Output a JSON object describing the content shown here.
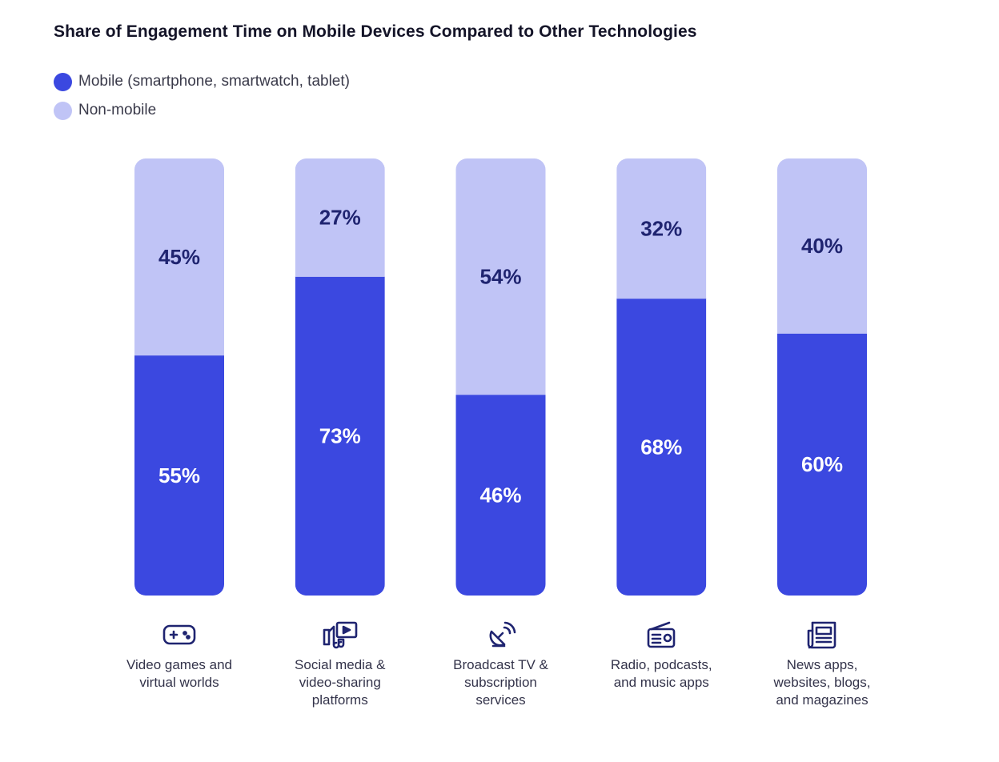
{
  "chart_data": {
    "type": "bar",
    "stacked": true,
    "title": "Share of Engagement Time on Mobile Devices Compared to Other Technologies",
    "categories": [
      "Video games and\nvirtual worlds",
      "Social media &\nvideo-sharing\nplatforms",
      "Broadcast TV &\nsubscription\nservices",
      "Radio, podcasts,\nand music apps",
      "News apps,\nwebsites, blogs,\nand magazines"
    ],
    "category_icons": [
      "gamepad-icon",
      "social-media-icon",
      "satellite-dish-icon",
      "radio-icon",
      "newspaper-icon"
    ],
    "series": [
      {
        "name": "Mobile (smartphone, smartwatch, tablet)",
        "values": [
          55,
          73,
          46,
          68,
          60
        ],
        "color": "#3b48e0",
        "label_color": "#ffffff"
      },
      {
        "name": "Non-mobile",
        "values": [
          45,
          27,
          54,
          32,
          40
        ],
        "color": "#c0c4f6",
        "label_color": "#1f2470"
      }
    ],
    "value_suffix": "%",
    "ylim": [
      0,
      100
    ],
    "legend_position": "top-left",
    "grid": false
  }
}
